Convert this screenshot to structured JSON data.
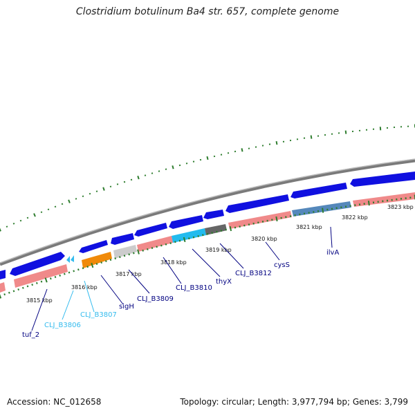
{
  "title": "Clostridium botulinum Ba4 str. 657, complete genome",
  "footer": {
    "accession": "Accession: NC_012658",
    "stats": "Topology: circular; Length: 3,977,794 bp; Genes: 3,799"
  },
  "colors": {
    "cds_forward": "#1010e0",
    "cds_reverse": "#f08a8a",
    "gray_backbone": "#808080",
    "tick_green": "#2e7d2e",
    "label_dark": "#000080",
    "label_light": "#33bbee"
  },
  "ruler_labels": [
    "3815 kbp",
    "3816 kbp",
    "3817 kbp",
    "3818 kbp",
    "3819 kbp",
    "3820 kbp",
    "3821 kbp",
    "3822 kbp",
    "3823 kbp"
  ],
  "genes": [
    {
      "label": "tuf_2",
      "color": "#000080"
    },
    {
      "label": "CLJ_B3806",
      "color": "#33bbee"
    },
    {
      "label": "CLJ_B3807",
      "color": "#33bbee"
    },
    {
      "label": "sigH",
      "color": "#000080"
    },
    {
      "label": "CLJ_B3809",
      "color": "#000080"
    },
    {
      "label": "CLJ_B3810",
      "color": "#000080"
    },
    {
      "label": "thyX",
      "color": "#000080"
    },
    {
      "label": "CLJ_B3812",
      "color": "#000080"
    },
    {
      "label": "cysS",
      "color": "#000080"
    },
    {
      "label": "ilvA",
      "color": "#000080"
    }
  ]
}
